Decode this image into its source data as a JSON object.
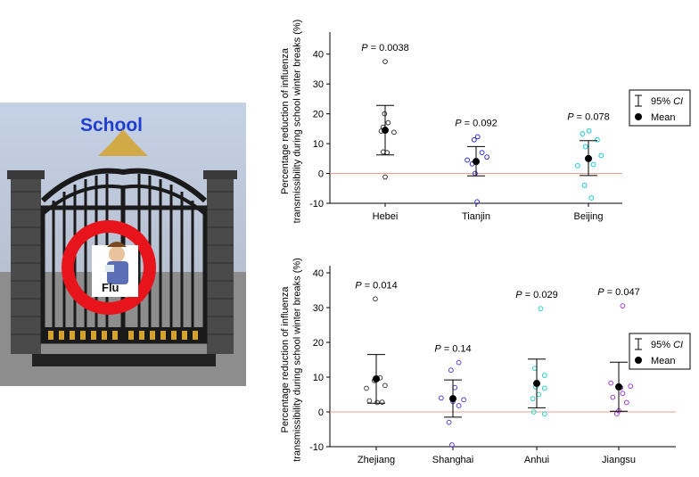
{
  "illustration": {
    "sign_text": "School",
    "badge_text": "Flu",
    "colors": {
      "sky": "#c9d3e6",
      "ground": "#8a8a8a",
      "gate": "#1a1a1a",
      "gold": "#d4a22b",
      "no_sign": "#e8141c",
      "school_text": "#1f3ed0"
    }
  },
  "chart_data": [
    {
      "type": "scatter",
      "ylabel": "Percentage reduction of influenza transmissibility during school winter breaks (%)",
      "xlabel": "",
      "ylim": [
        -10,
        45
      ],
      "yticks": [
        -10,
        0,
        10,
        20,
        30,
        40
      ],
      "zero_line": true,
      "zero_line_color": "#e8a090",
      "legend": {
        "placement": "right",
        "ci_label_prefix": "95% ",
        "ci_label_italic": "CI",
        "mean_label": "Mean"
      },
      "groups": [
        {
          "name": "Hebei",
          "color": "#333333",
          "p_prefix": "P",
          "p_value": " = 0.0038",
          "mean": 14.5,
          "ci": [
            6.2,
            22.8
          ],
          "points": [
            [
              0,
              37.5
            ],
            [
              -0.03,
              20
            ],
            [
              -0.1,
              15.5
            ],
            [
              0.15,
              17
            ],
            [
              -0.2,
              14.2
            ],
            [
              0.45,
              13.8
            ],
            [
              -0.1,
              7.2
            ],
            [
              0.1,
              7.0
            ],
            [
              0,
              -1.2
            ]
          ]
        },
        {
          "name": "Tianjin",
          "color": "#2b2bd6",
          "p_prefix": "P",
          "p_value": " = 0.092",
          "mean": 4.0,
          "ci": [
            -0.8,
            9.0
          ],
          "points": [
            [
              0.08,
              12.3
            ],
            [
              -0.1,
              11.3
            ],
            [
              -0.45,
              4.5
            ],
            [
              -0.2,
              3.2
            ],
            [
              0.3,
              7.0
            ],
            [
              0.55,
              5.5
            ],
            [
              -0.05,
              0.0
            ],
            [
              0.05,
              -9.5
            ]
          ]
        },
        {
          "name": "Beijing",
          "color": "#19c9d6",
          "p_prefix": "P",
          "p_value": " = 0.078",
          "mean": 5.0,
          "ci": [
            -0.7,
            11.0
          ],
          "points": [
            [
              0.03,
              14.3
            ],
            [
              -0.3,
              13.3
            ],
            [
              0.45,
              11.3
            ],
            [
              -0.15,
              9.0
            ],
            [
              0.65,
              6.0
            ],
            [
              -0.55,
              2.6
            ],
            [
              0.25,
              3.0
            ],
            [
              -0.2,
              -4.0
            ],
            [
              0.15,
              -8.2
            ]
          ]
        }
      ]
    },
    {
      "type": "scatter",
      "ylabel": "Percentage reduction of influenza transmissibility during school winter breaks (%)",
      "xlabel": "",
      "ylim": [
        -10,
        40
      ],
      "yticks": [
        -10,
        0,
        10,
        20,
        30,
        40
      ],
      "zero_line": true,
      "zero_line_color": "#e8a090",
      "legend": {
        "placement": "right",
        "ci_label_prefix": "95% ",
        "ci_label_italic": "CI",
        "mean_label": "Mean"
      },
      "groups": [
        {
          "name": "Zhejiang",
          "color": "#444444",
          "p_prefix": "P",
          "p_value": " = 0.014",
          "mean": 9.5,
          "ci": [
            2.5,
            16.5
          ],
          "points": [
            [
              -0.05,
              32.5
            ],
            [
              -0.5,
              6.8
            ],
            [
              0.45,
              7.6
            ],
            [
              0.2,
              9.8
            ],
            [
              -0.1,
              9.0
            ],
            [
              -0.35,
              3.2
            ],
            [
              0.3,
              2.8
            ],
            [
              0.05,
              2.7
            ]
          ]
        },
        {
          "name": "Shanghai",
          "color": "#5b3fd0",
          "p_prefix": "P",
          "p_value": " = 0.14",
          "mean": 3.8,
          "ci": [
            -1.5,
            9.2
          ],
          "points": [
            [
              0.3,
              14.2
            ],
            [
              -0.1,
              12.0
            ],
            [
              0.1,
              7.0
            ],
            [
              -0.6,
              4.0
            ],
            [
              0.55,
              3.5
            ],
            [
              0.0,
              3.0
            ],
            [
              0.3,
              1.8
            ],
            [
              -0.2,
              -3.0
            ],
            [
              -0.05,
              -9.5
            ]
          ]
        },
        {
          "name": "Anhui",
          "color": "#27d2c4",
          "p_prefix": "P",
          "p_value": " = 0.029",
          "mean": 8.2,
          "ci": [
            1.2,
            15.2
          ],
          "points": [
            [
              0.2,
              29.7
            ],
            [
              -0.1,
              12.5
            ],
            [
              0.4,
              10.5
            ],
            [
              -0.05,
              7.2
            ],
            [
              0.4,
              6.8
            ],
            [
              0.1,
              5.0
            ],
            [
              -0.2,
              3.8
            ],
            [
              -0.15,
              0.0
            ],
            [
              0.4,
              -0.6
            ]
          ]
        },
        {
          "name": "Jiangsu",
          "color": "#9a3fd6",
          "p_prefix": "P",
          "p_value": " = 0.047",
          "mean": 7.2,
          "ci": [
            0.2,
            14.3
          ],
          "points": [
            [
              0.2,
              30.5
            ],
            [
              -0.4,
              8.3
            ],
            [
              0.6,
              7.4
            ],
            [
              0.1,
              7.0
            ],
            [
              -0.3,
              4.2
            ],
            [
              0.2,
              5.3
            ],
            [
              0.4,
              2.7
            ],
            [
              0.0,
              0.3
            ],
            [
              -0.1,
              -0.5
            ]
          ]
        }
      ]
    }
  ]
}
